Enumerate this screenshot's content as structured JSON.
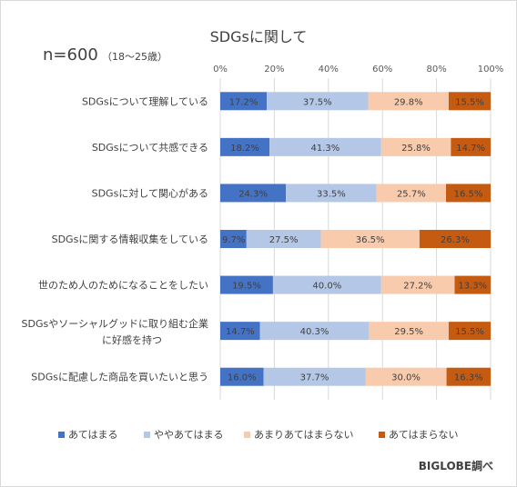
{
  "chart_data": {
    "type": "bar",
    "orientation": "horizontal",
    "stacked": "percent",
    "title": "SDGsに関して",
    "sample_label": "n=600",
    "sample_note": "（18～25歳）",
    "credit": "BIGLOBE調べ",
    "xlim": [
      0,
      100
    ],
    "x_ticks": [
      "0%",
      "20%",
      "40%",
      "60%",
      "80%",
      "100%"
    ],
    "legend_position": "bottom",
    "grid": true,
    "categories": [
      [
        "SDGsについて理解している"
      ],
      [
        "SDGsについて共感できる"
      ],
      [
        "SDGsに対して関心がある"
      ],
      [
        "SDGsに関する情報収集をしている"
      ],
      [
        "世のため人のためになることをしたい"
      ],
      [
        "SDGsやソーシャルグッドに取り組む企業",
        "に好感を持つ"
      ],
      [
        "SDGsに配慮した商品を買いたいと思う"
      ]
    ],
    "series": [
      {
        "name": "あてはまる",
        "color": "#4472c4",
        "values": [
          17.2,
          18.2,
          24.3,
          9.7,
          19.5,
          14.7,
          16.0
        ],
        "labels": [
          "17.2%",
          "18.2%",
          "24.3%",
          "9.7%",
          "19.5%",
          "14.7%",
          "16.0%"
        ]
      },
      {
        "name": "ややあてはまる",
        "color": "#b4c7e7",
        "values": [
          37.5,
          41.3,
          33.5,
          27.5,
          40.0,
          40.3,
          37.7
        ],
        "labels": [
          "37.5%",
          "41.3%",
          "33.5%",
          "27.5%",
          "40.0%",
          "40.3%",
          "37.7%"
        ]
      },
      {
        "name": "あまりあてはまらない",
        "color": "#f8cbad",
        "values": [
          29.8,
          25.8,
          25.7,
          36.5,
          27.2,
          29.5,
          30.0
        ],
        "labels": [
          "29.8%",
          "25.8%",
          "25.7%",
          "36.5%",
          "27.2%",
          "29.5%",
          "30.0%"
        ]
      },
      {
        "name": "あてはまらない",
        "color": "#c55a11",
        "values": [
          15.5,
          14.7,
          16.5,
          26.3,
          13.3,
          15.5,
          16.3
        ],
        "labels": [
          "15.5%",
          "14.7%",
          "16.5%",
          "26.3%",
          "13.3%",
          "15.5%",
          "16.3%"
        ]
      }
    ]
  }
}
